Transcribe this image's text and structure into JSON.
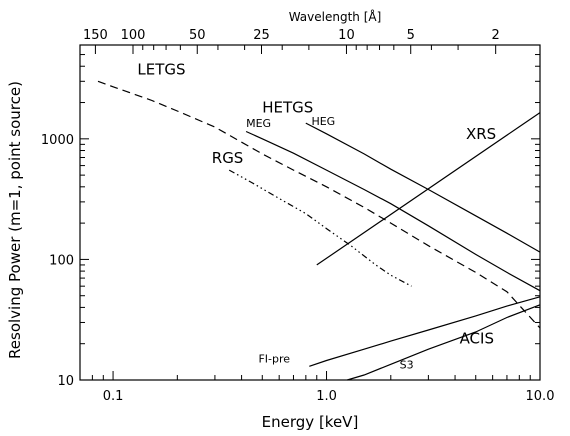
{
  "chart_data": {
    "type": "line",
    "title": "",
    "xlabel": "Energy [keV]",
    "ylabel": "Resolving Power (m=1, point source)",
    "top_xlabel": "Wavelength [Å]",
    "xscale": "log",
    "yscale": "log",
    "xlim": [
      0.07,
      10.0
    ],
    "ylim": [
      10,
      6000
    ],
    "grid": false,
    "x_ticks": [
      {
        "value": 0.1,
        "label": "0.1"
      },
      {
        "value": 1.0,
        "label": "1.0"
      },
      {
        "value": 10.0,
        "label": "10.0"
      }
    ],
    "y_ticks": [
      {
        "value": 10,
        "label": "10"
      },
      {
        "value": 100,
        "label": "100"
      },
      {
        "value": 1000,
        "label": "1000"
      }
    ],
    "top_ticks": [
      {
        "value": 150,
        "label": "150"
      },
      {
        "value": 100,
        "label": "100"
      },
      {
        "value": 50,
        "label": "50"
      },
      {
        "value": 25,
        "label": "25"
      },
      {
        "value": 10,
        "label": "10"
      },
      {
        "value": 5,
        "label": "5"
      },
      {
        "value": 2,
        "label": "2"
      }
    ],
    "series": [
      {
        "id": "letgs",
        "dash": "8,5",
        "x": [
          0.085,
          0.1,
          0.15,
          0.2,
          0.3,
          0.5,
          0.7,
          1.0,
          1.5,
          2.0,
          3.0,
          5.0,
          7.0,
          10.0
        ],
        "y": [
          3000,
          2700,
          2100,
          1700,
          1250,
          750,
          550,
          400,
          270,
          200,
          130,
          78,
          54,
          27
        ]
      },
      {
        "id": "meg",
        "dash": "",
        "x": [
          0.42,
          0.5,
          0.7,
          1.0,
          1.5,
          2.0,
          3.0,
          5.0,
          7.0,
          10.0
        ],
        "y": [
          1150,
          1000,
          760,
          550,
          380,
          290,
          190,
          110,
          78,
          55
        ]
      },
      {
        "id": "heg",
        "dash": "",
        "x": [
          0.8,
          1.0,
          1.5,
          2.0,
          3.0,
          5.0,
          7.0,
          10.0
        ],
        "y": [
          1350,
          1100,
          750,
          560,
          380,
          230,
          165,
          115
        ]
      },
      {
        "id": "rgs",
        "dash": "6,3,1.5,3,1.5,3,1.5,3",
        "x": [
          0.35,
          0.45,
          0.6,
          0.8,
          1.0,
          1.3,
          1.7,
          2.0,
          2.5
        ],
        "y": [
          550,
          430,
          320,
          240,
          180,
          130,
          90,
          74,
          60
        ]
      },
      {
        "id": "xrs",
        "dash": "",
        "x": [
          0.9,
          10.0
        ],
        "y": [
          90,
          1650
        ]
      },
      {
        "id": "acis-fi",
        "dash": "",
        "x": [
          0.83,
          1.0,
          1.5,
          2.0,
          3.0,
          5.0,
          7.0,
          10.0
        ],
        "y": [
          13,
          14.5,
          18,
          21,
          26,
          34,
          41,
          49
        ]
      },
      {
        "id": "acis-s3",
        "dash": "",
        "x": [
          1.25,
          1.5,
          2.0,
          3.0,
          5.0,
          7.0,
          10.0
        ],
        "y": [
          10,
          11,
          13.5,
          18,
          25,
          33,
          42
        ]
      }
    ],
    "annotations": [
      {
        "id": "letgs",
        "text": "LETGS",
        "x": 0.13,
        "y": 3400,
        "size": "big"
      },
      {
        "id": "hetgs",
        "text": "HETGS",
        "x": 0.5,
        "y": 1650,
        "size": "big"
      },
      {
        "id": "meg",
        "text": "MEG",
        "x": 0.42,
        "y": 1250,
        "size": "small"
      },
      {
        "id": "heg",
        "text": "HEG",
        "x": 0.85,
        "y": 1300,
        "size": "small"
      },
      {
        "id": "rgs",
        "text": "RGS",
        "x": 0.29,
        "y": 630,
        "size": "big"
      },
      {
        "id": "xrs",
        "text": "XRS",
        "x": 4.5,
        "y": 1000,
        "size": "big"
      },
      {
        "id": "fi-pre",
        "text": "FI-pre",
        "x": 0.48,
        "y": 14,
        "size": "small"
      },
      {
        "id": "s3",
        "text": "S3",
        "x": 2.2,
        "y": 12.5,
        "size": "small"
      },
      {
        "id": "acis",
        "text": "ACIS",
        "x": 4.2,
        "y": 20,
        "size": "big"
      }
    ]
  }
}
